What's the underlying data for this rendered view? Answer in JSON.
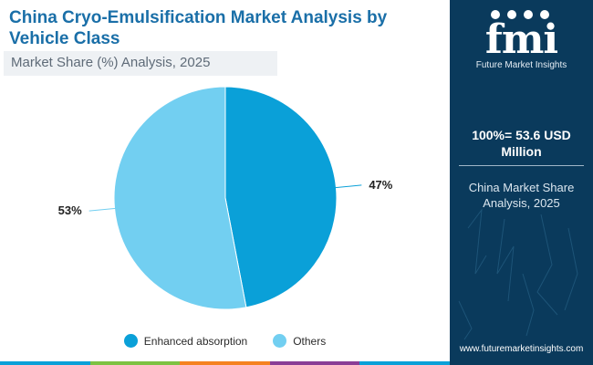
{
  "title": "China Cryo-Emulsification Market Analysis by Vehicle Class",
  "subtitle": "Market Share (%) Analysis, 2025",
  "chart_data": {
    "type": "pie",
    "categories": [
      "Enhanced absorption",
      "Others"
    ],
    "values": [
      47,
      53
    ],
    "value_labels": [
      "47%",
      "53%"
    ],
    "colors": [
      "#0aa0d8",
      "#72cff1"
    ],
    "legend_position": "bottom"
  },
  "sidebar": {
    "logo_text": "fmi",
    "logo_subtitle": "Future Market Insights",
    "total_value": "100%=  53.6 USD Million",
    "region_label": "China Market Share Analysis, 2025",
    "website": "www.futuremarketinsights.com"
  },
  "accent_colors": {
    "title": "#1a6fa8",
    "sidebar_bg": "#0a3a5c",
    "bottom_bar": [
      "#0aa0d8",
      "#7dc242",
      "#f58220",
      "#8a3d96",
      "#0aa0d8"
    ]
  }
}
